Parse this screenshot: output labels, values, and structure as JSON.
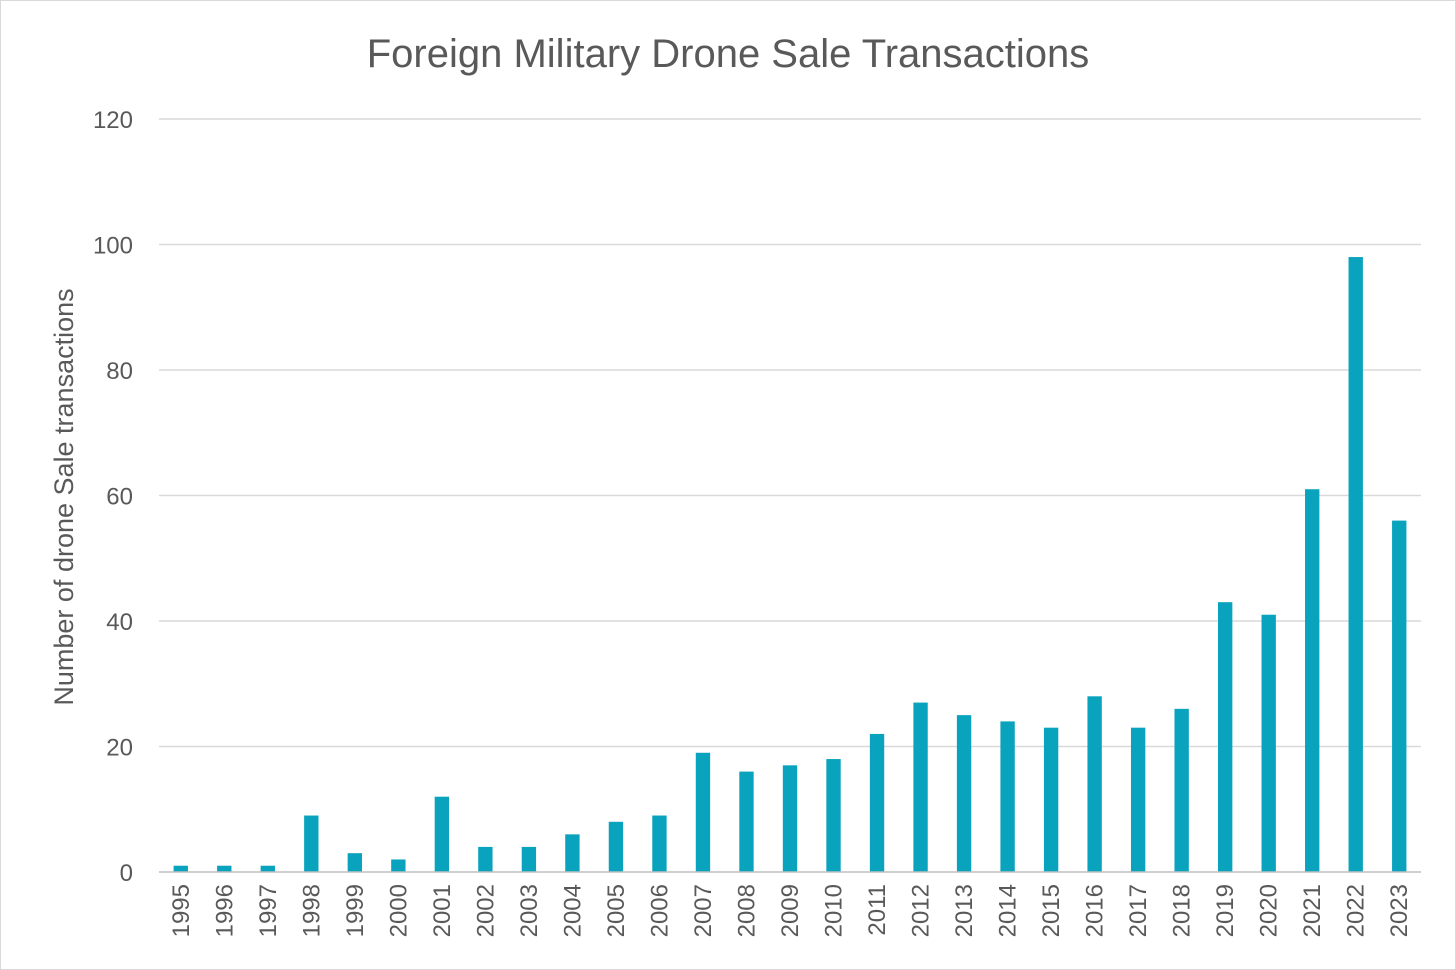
{
  "chart_data": {
    "type": "bar",
    "title": "Foreign Military Drone Sale Transactions",
    "xlabel": "",
    "ylabel": "Number of drone Sale transactions",
    "ylim": [
      0,
      120
    ],
    "yticks": [
      0,
      20,
      40,
      60,
      80,
      100,
      120
    ],
    "grid": true,
    "legend": "none",
    "bar_color": "#0aa3be",
    "categories": [
      "1995",
      "1996",
      "1997",
      "1998",
      "1999",
      "2000",
      "2001",
      "2002",
      "2003",
      "2004",
      "2005",
      "2006",
      "2007",
      "2008",
      "2009",
      "2010",
      "2011",
      "2012",
      "2013",
      "2014",
      "2015",
      "2016",
      "2017",
      "2018",
      "2019",
      "2020",
      "2021",
      "2022",
      "2023"
    ],
    "values": [
      1,
      1,
      1,
      9,
      3,
      2,
      12,
      4,
      4,
      6,
      8,
      9,
      19,
      16,
      17,
      18,
      22,
      27,
      25,
      24,
      23,
      28,
      23,
      26,
      43,
      41,
      61,
      98,
      56
    ]
  }
}
